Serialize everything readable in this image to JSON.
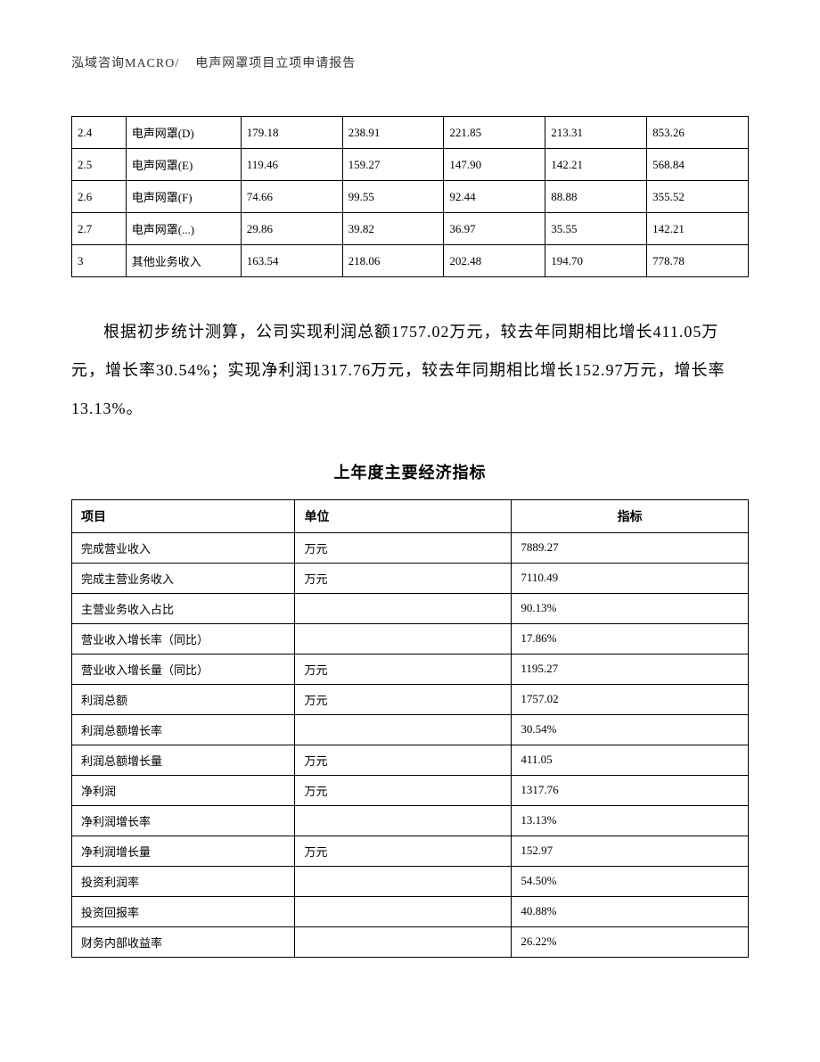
{
  "header": {
    "company": "泓域咨询MACRO/",
    "title": "电声网罩项目立项申请报告"
  },
  "table1": {
    "rows": [
      {
        "c1": "2.4",
        "c2": "电声网罩(D)",
        "c3": "179.18",
        "c4": "238.91",
        "c5": "221.85",
        "c6": "213.31",
        "c7": "853.26"
      },
      {
        "c1": "2.5",
        "c2": "电声网罩(E)",
        "c3": "119.46",
        "c4": "159.27",
        "c5": "147.90",
        "c6": "142.21",
        "c7": "568.84"
      },
      {
        "c1": "2.6",
        "c2": "电声网罩(F)",
        "c3": "74.66",
        "c4": "99.55",
        "c5": "92.44",
        "c6": "88.88",
        "c7": "355.52"
      },
      {
        "c1": "2.7",
        "c2": "电声网罩(...)",
        "c3": "29.86",
        "c4": "39.82",
        "c5": "36.97",
        "c6": "35.55",
        "c7": "142.21"
      },
      {
        "c1": "3",
        "c2": "其他业务收入",
        "c3": "163.54",
        "c4": "218.06",
        "c5": "202.48",
        "c6": "194.70",
        "c7": "778.78"
      }
    ]
  },
  "paragraph": "根据初步统计测算，公司实现利润总额1757.02万元，较去年同期相比增长411.05万元，增长率30.54%；实现净利润1317.76万元，较去年同期相比增长152.97万元，增长率13.13%。",
  "section_title": "上年度主要经济指标",
  "table2": {
    "headers": {
      "h1": "项目",
      "h2": "单位",
      "h3": "指标"
    },
    "rows": [
      {
        "item": "完成营业收入",
        "unit": "万元",
        "value": "7889.27"
      },
      {
        "item": "完成主营业务收入",
        "unit": "万元",
        "value": "7110.49"
      },
      {
        "item": "主营业务收入占比",
        "unit": "",
        "value": "90.13%"
      },
      {
        "item": "营业收入增长率（同比）",
        "unit": "",
        "value": "17.86%"
      },
      {
        "item": "营业收入增长量（同比）",
        "unit": "万元",
        "value": "1195.27"
      },
      {
        "item": "利润总额",
        "unit": "万元",
        "value": "1757.02"
      },
      {
        "item": "利润总额增长率",
        "unit": "",
        "value": "30.54%"
      },
      {
        "item": "利润总额增长量",
        "unit": "万元",
        "value": "411.05"
      },
      {
        "item": "净利润",
        "unit": "万元",
        "value": "1317.76"
      },
      {
        "item": "净利润增长率",
        "unit": "",
        "value": "13.13%"
      },
      {
        "item": "净利润增长量",
        "unit": "万元",
        "value": "152.97"
      },
      {
        "item": "投资利润率",
        "unit": "",
        "value": "54.50%"
      },
      {
        "item": "投资回报率",
        "unit": "",
        "value": "40.88%"
      },
      {
        "item": "财务内部收益率",
        "unit": "",
        "value": "26.22%"
      }
    ]
  }
}
